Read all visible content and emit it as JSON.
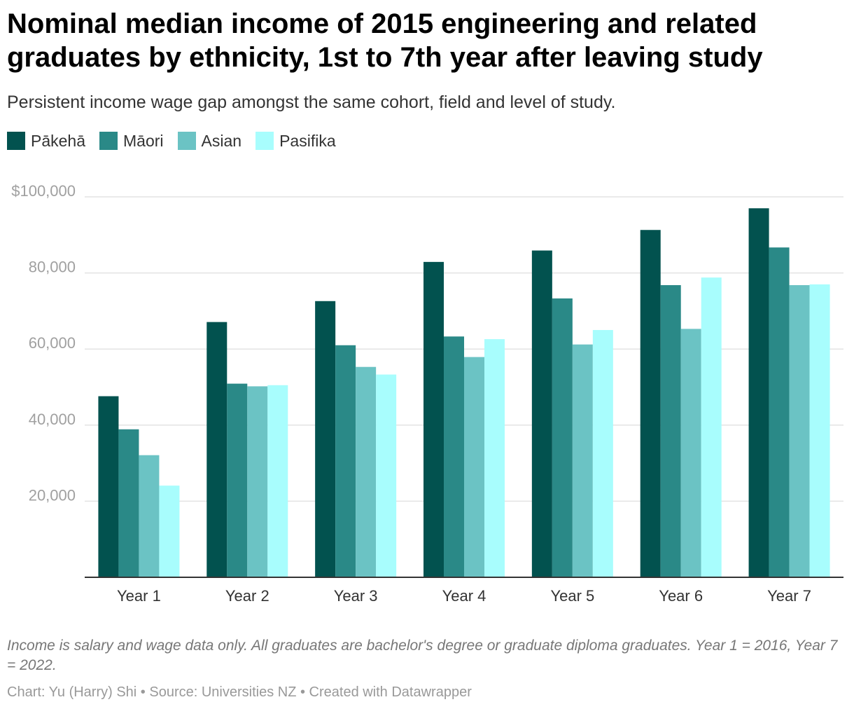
{
  "chart_data": {
    "type": "bar",
    "title": "Nominal median income of 2015 engineering and related graduates by ethnicity, 1st to 7th year after leaving study",
    "subtitle": "Persistent income wage gap amongst the same cohort, field and level of study.",
    "categories": [
      "Year 1",
      "Year 2",
      "Year 3",
      "Year 4",
      "Year 5",
      "Year 6",
      "Year 7"
    ],
    "series": [
      {
        "name": "Pākehā",
        "color": "#02524f",
        "values": [
          47600,
          67100,
          72600,
          82900,
          85900,
          91300,
          97000
        ]
      },
      {
        "name": "Māori",
        "color": "#2a8987",
        "values": [
          38900,
          50900,
          61000,
          63300,
          73300,
          76800,
          86700
        ]
      },
      {
        "name": "Asian",
        "color": "#6bc3c4",
        "values": [
          32100,
          50200,
          55300,
          57900,
          61200,
          65300,
          76800
        ]
      },
      {
        "name": "Pasifika",
        "color": "#a8fdfd",
        "values": [
          24100,
          50500,
          53300,
          62600,
          65000,
          78800,
          77000
        ]
      }
    ],
    "ylim": [
      0,
      100000
    ],
    "yticks": [
      {
        "value": 20000,
        "label": "20,000"
      },
      {
        "value": 40000,
        "label": "40,000"
      },
      {
        "value": 60000,
        "label": "60,000"
      },
      {
        "value": 80000,
        "label": "80,000"
      },
      {
        "value": 100000,
        "label": "$100,000"
      }
    ],
    "grid": true,
    "legend": "top-left"
  },
  "notes": "Income is salary and wage data only. All graduates are bachelor's degree or graduate diploma graduates. Year 1 = 2016, Year 7 = 2022.",
  "footer": "Chart: Yu (Harry) Shi • Source: Universities NZ • Created with Datawrapper"
}
